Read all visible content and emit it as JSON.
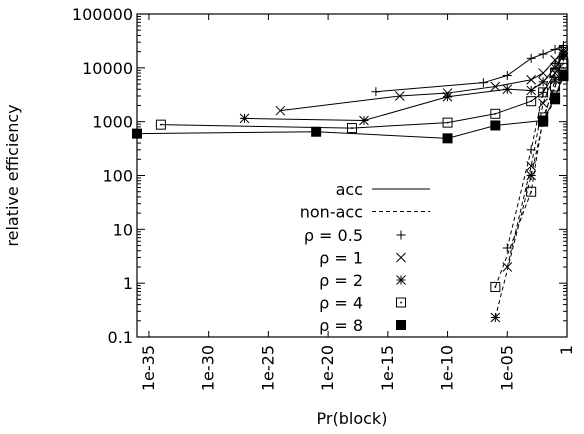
{
  "chart_data": {
    "type": "line",
    "title": "",
    "xlabel": "Pr(block)",
    "ylabel": "relative efficiency",
    "xscale": "log10",
    "yscale": "log10",
    "xlim": [
      1e-36,
      1
    ],
    "ylim": [
      0.1,
      100000
    ],
    "grid": false,
    "legend_position": "center-right",
    "x_ticks": [
      {
        "value": -35,
        "label": "1e-35"
      },
      {
        "value": -30,
        "label": "1e-30"
      },
      {
        "value": -25,
        "label": "1e-25"
      },
      {
        "value": -20,
        "label": "1e-20"
      },
      {
        "value": -15,
        "label": "1e-15"
      },
      {
        "value": -10,
        "label": "1e-10"
      },
      {
        "value": -5,
        "label": "1e-05"
      },
      {
        "value": 0,
        "label": "1"
      }
    ],
    "y_ticks": [
      {
        "value": 0.1,
        "label": "0.1"
      },
      {
        "value": 1,
        "label": "1"
      },
      {
        "value": 10,
        "label": "10"
      },
      {
        "value": 100,
        "label": "100"
      },
      {
        "value": 1000,
        "label": "1000"
      },
      {
        "value": 10000,
        "label": "10000"
      },
      {
        "value": 100000,
        "label": "100000"
      }
    ],
    "line_styles": [
      {
        "name": "acc",
        "dash": "solid"
      },
      {
        "name": "non-acc",
        "dash": "dashed"
      }
    ],
    "series": [
      {
        "name": "ρ = 0.5",
        "marker": "plus",
        "acc": [
          [
            1e-16,
            3600
          ],
          [
            1e-07,
            5300
          ],
          [
            1e-05,
            7200
          ],
          [
            0.001,
            15000
          ],
          [
            0.01,
            18000
          ],
          [
            0.1,
            22000
          ],
          [
            0.5,
            26000
          ]
        ],
        "nonacc": [
          [
            1e-05,
            4.5
          ],
          [
            0.001,
            300
          ],
          [
            0.01,
            3500
          ],
          [
            0.1,
            12000
          ],
          [
            0.5,
            24000
          ]
        ]
      },
      {
        "name": "ρ = 1",
        "marker": "cross",
        "acc": [
          [
            1e-24,
            1600
          ],
          [
            1e-14,
            3000
          ],
          [
            1e-10,
            3400
          ],
          [
            1e-06,
            4500
          ],
          [
            0.001,
            6000
          ],
          [
            0.01,
            8000
          ],
          [
            0.1,
            14000
          ],
          [
            0.5,
            21000
          ]
        ],
        "nonacc": [
          [
            1e-05,
            2.0
          ],
          [
            0.001,
            150
          ],
          [
            0.01,
            2200
          ],
          [
            0.1,
            8000
          ],
          [
            0.5,
            19000
          ]
        ]
      },
      {
        "name": "ρ = 2",
        "marker": "star",
        "acc": [
          [
            1e-27,
            1150
          ],
          [
            1e-17,
            1050
          ],
          [
            1e-10,
            2900
          ],
          [
            1e-05,
            4000
          ],
          [
            0.001,
            3800
          ],
          [
            0.01,
            5500
          ],
          [
            0.1,
            10000
          ],
          [
            0.5,
            18000
          ]
        ],
        "nonacc": [
          [
            1e-06,
            0.23
          ],
          [
            0.001,
            100
          ],
          [
            0.01,
            1000
          ],
          [
            0.1,
            6000
          ],
          [
            0.5,
            16000
          ]
        ]
      },
      {
        "name": "ρ = 4",
        "marker": "square-open",
        "acc": [
          [
            1e-34,
            880
          ],
          [
            1e-18,
            760
          ],
          [
            1e-10,
            960
          ],
          [
            1e-06,
            1400
          ],
          [
            0.001,
            2400
          ],
          [
            0.01,
            3500
          ],
          [
            0.1,
            8000
          ],
          [
            0.5,
            12000
          ]
        ],
        "nonacc": [
          [
            1e-06,
            0.85
          ],
          [
            0.001,
            50
          ],
          [
            0.01,
            1200
          ],
          [
            0.1,
            4500
          ],
          [
            0.5,
            10000
          ]
        ]
      },
      {
        "name": "ρ = 8",
        "marker": "square-filled",
        "acc": [
          [
            1e-36,
            600
          ],
          [
            1e-21,
            650
          ],
          [
            1e-10,
            490
          ],
          [
            1e-06,
            850
          ],
          [
            0.01,
            1050
          ],
          [
            0.1,
            2800
          ],
          [
            0.5,
            7500
          ]
        ],
        "nonacc": [
          [
            0.01,
            1000
          ],
          [
            0.1,
            2600
          ],
          [
            0.5,
            7000
          ]
        ]
      }
    ]
  }
}
